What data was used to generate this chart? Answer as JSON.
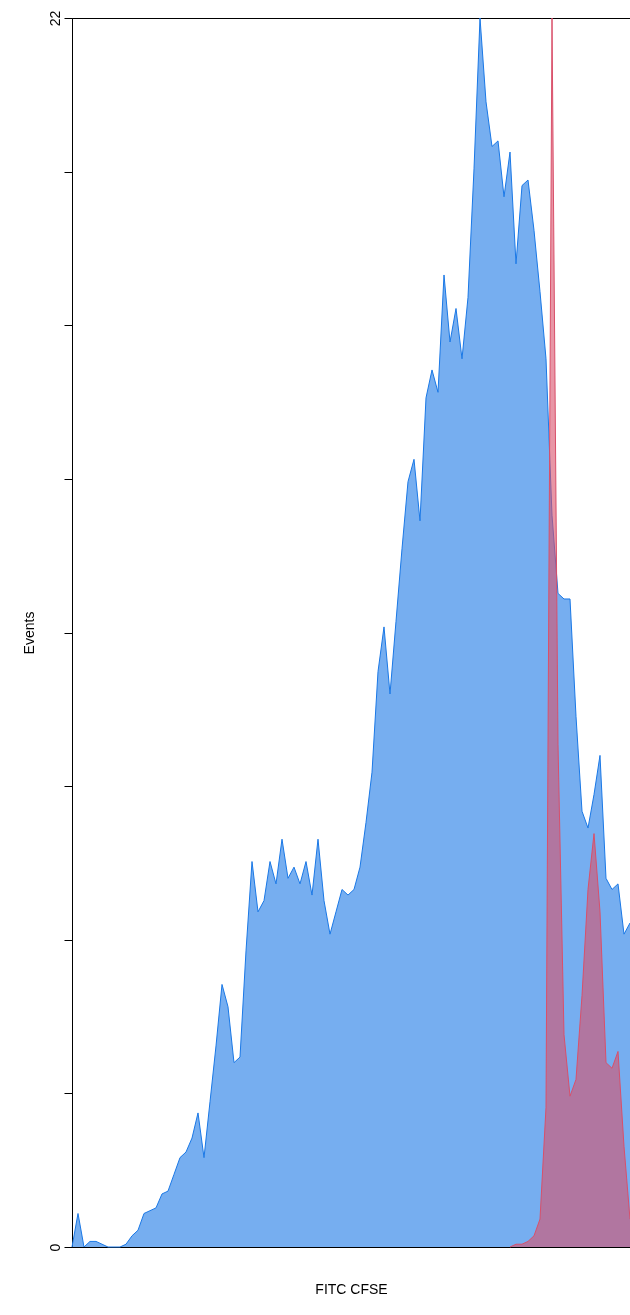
{
  "chart_data": {
    "type": "area",
    "xlabel": "FITC CFSE",
    "ylabel": "Events",
    "ylim": [
      0,
      22
    ],
    "yticks": [
      0,
      {
        "value": 2.75,
        "label": null
      },
      {
        "value": 5.5,
        "label": null
      },
      {
        "value": 8.25,
        "label": null
      },
      {
        "value": 11,
        "label": null
      },
      {
        "value": 13.75,
        "label": null
      },
      {
        "value": 16.5,
        "label": null
      },
      {
        "value": 19.25,
        "label": null
      },
      22
    ],
    "tick_labels": "y",
    "grid": false,
    "categories": [
      null,
      null,
      null,
      null,
      null,
      null,
      null,
      null,
      null,
      null,
      null,
      null,
      null,
      null,
      null,
      null,
      null,
      null,
      null,
      null,
      null,
      null,
      null,
      null,
      null,
      null,
      null,
      null,
      null,
      null,
      null,
      null,
      null,
      null,
      null,
      null,
      null,
      null,
      null,
      null,
      null,
      null,
      null,
      null,
      null,
      null,
      null,
      null,
      null,
      null,
      null,
      null,
      null,
      null,
      null,
      null,
      null,
      null,
      null,
      null,
      null,
      null,
      null,
      null,
      null,
      null,
      null,
      null,
      null,
      null,
      null,
      null,
      null,
      null,
      null,
      null,
      null,
      null,
      null,
      null,
      null,
      null,
      null,
      null,
      null,
      null,
      null,
      null,
      null,
      null,
      null,
      null,
      null,
      null
    ],
    "series": [
      {
        "color": "#1a78e6",
        "values": [
          0,
          0.6,
          0,
          0.1,
          0.1,
          0.05,
          0,
          0,
          0,
          0.05,
          0.2,
          0.3,
          0.6,
          0.65,
          0.7,
          0.95,
          1.0,
          1.3,
          1.6,
          1.7,
          1.95,
          2.4,
          1.6,
          2.6,
          3.6,
          4.7,
          4.3,
          3.3,
          3.4,
          5.3,
          6.9,
          6.0,
          6.2,
          6.9,
          6.5,
          7.3,
          6.6,
          6.8,
          6.5,
          6.9,
          6.3,
          7.3,
          6.2,
          5.6,
          6.0,
          6.4,
          6.3,
          6.4,
          6.8,
          7.6,
          8.5,
          10.3,
          11.1,
          9.9,
          11.2,
          12.5,
          13.7,
          14.1,
          13.0,
          15.2,
          15.7,
          15.3,
          17.4,
          16.2,
          16.8,
          15.9,
          17.0,
          19.3,
          22,
          20.5,
          19.7,
          19.8,
          18.8,
          19.6,
          17.6,
          19.0,
          19.1,
          18.2,
          17.1,
          15.9,
          13.1,
          11.7,
          11.6,
          11.6,
          9.5,
          7.8,
          7.5,
          8.1,
          8.8,
          6.6,
          6.4,
          6.5,
          5.6,
          5.8
        ]
      },
      {
        "color": "#d9506a",
        "values": [
          null,
          null,
          null,
          null,
          null,
          null,
          null,
          null,
          null,
          null,
          null,
          null,
          null,
          null,
          null,
          null,
          null,
          null,
          null,
          null,
          null,
          null,
          null,
          null,
          null,
          null,
          null,
          null,
          null,
          null,
          null,
          null,
          null,
          null,
          null,
          null,
          null,
          null,
          null,
          null,
          null,
          null,
          null,
          null,
          null,
          null,
          null,
          null,
          null,
          null,
          null,
          null,
          null,
          null,
          null,
          null,
          null,
          null,
          null,
          null,
          null,
          null,
          null,
          null,
          null,
          null,
          null,
          null,
          null,
          null,
          null,
          null,
          null,
          0,
          0.05,
          0.05,
          0.1,
          0.2,
          0.5,
          2.5,
          22,
          9,
          3.8,
          2.7,
          3.0,
          4.5,
          6.4,
          7.4,
          6.0,
          3.3,
          3.2,
          3.5,
          1.8,
          0.5
        ]
      }
    ]
  }
}
